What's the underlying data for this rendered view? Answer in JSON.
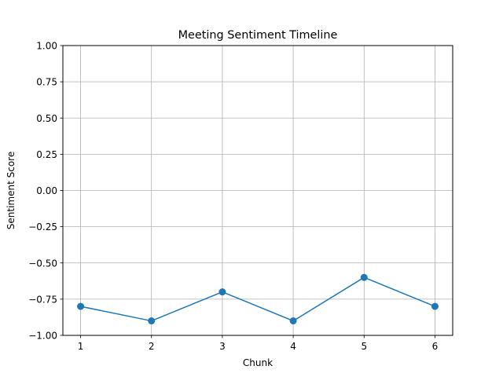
{
  "chart_data": {
    "type": "line",
    "title": "Meeting Sentiment Timeline",
    "xlabel": "Chunk",
    "ylabel": "Sentiment Score",
    "x": [
      1,
      2,
      3,
      4,
      5,
      6
    ],
    "series": [
      {
        "values": [
          -0.8,
          -0.9,
          -0.7,
          -0.9,
          -0.6,
          -0.8
        ],
        "color": "#1f77b4",
        "marker": "circle"
      }
    ],
    "xticks": [
      1,
      2,
      3,
      4,
      5,
      6
    ],
    "xtick_labels": [
      "1",
      "2",
      "3",
      "4",
      "5",
      "6"
    ],
    "xlim": [
      0.75,
      6.25
    ],
    "yticks": [
      1.0,
      0.75,
      0.5,
      0.25,
      0.0,
      -0.25,
      -0.5,
      -0.75,
      -1.0
    ],
    "ytick_labels": [
      "1.00",
      "0.75",
      "0.50",
      "0.25",
      "0.00",
      "−0.25",
      "−0.50",
      "−0.75",
      "−1.00"
    ],
    "ylim": [
      -1.0,
      1.0
    ],
    "grid": true,
    "legend": "none",
    "grid_color": "#b0b0b0",
    "axis_color": "#000000"
  }
}
